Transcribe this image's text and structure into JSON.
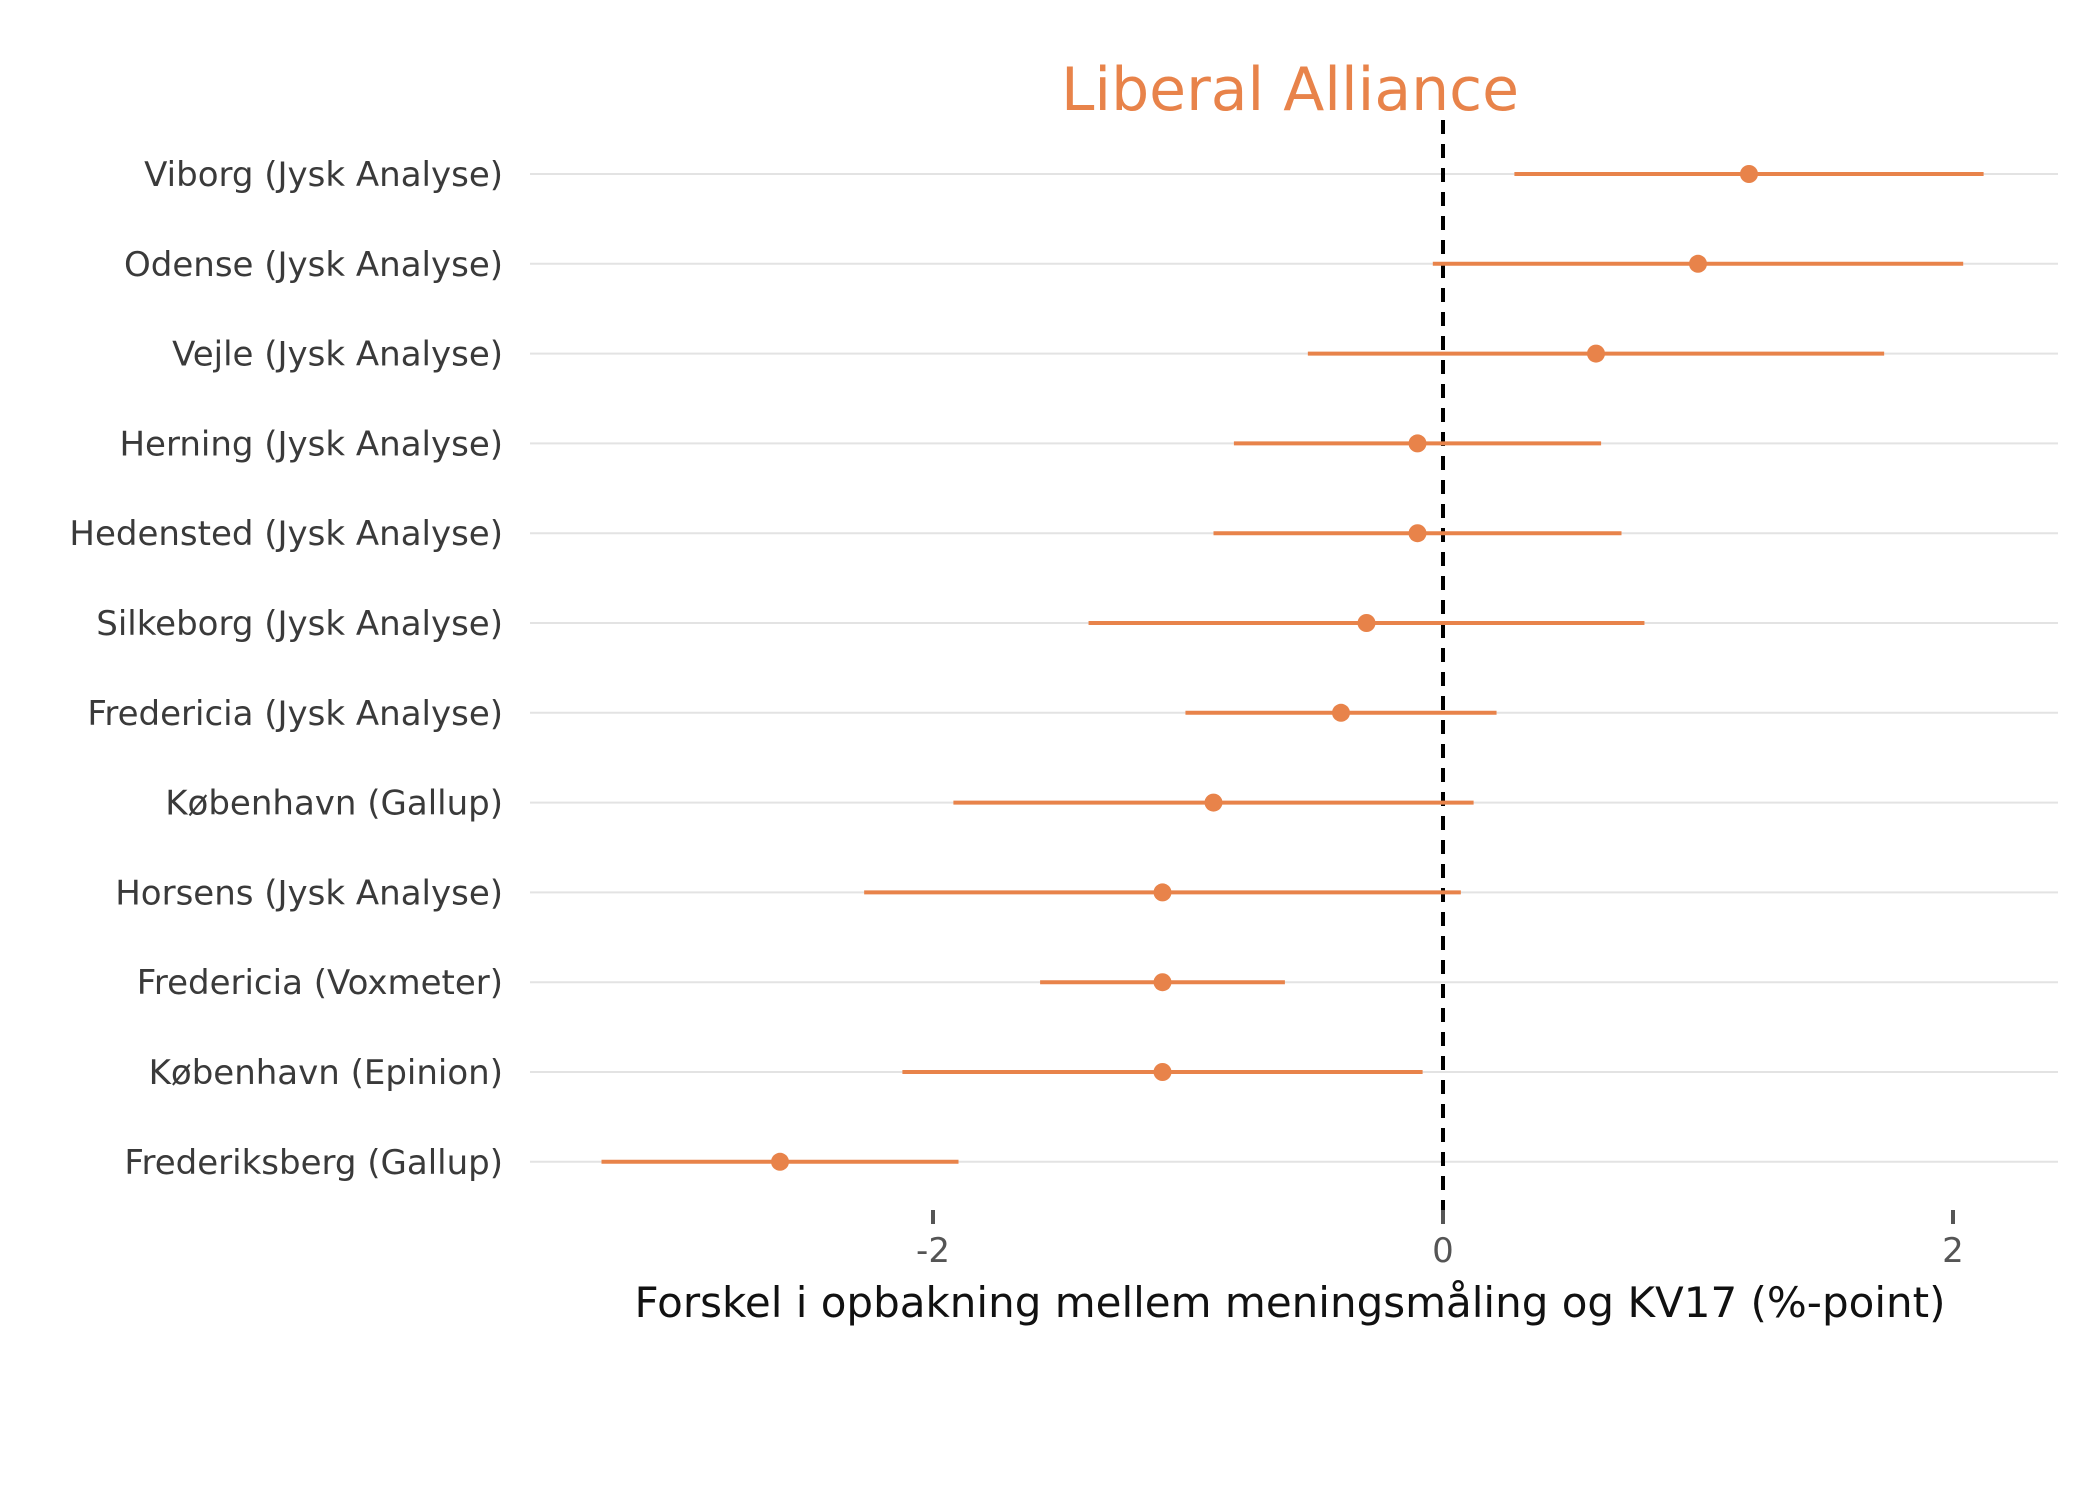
{
  "chart_data": {
    "type": "scatter",
    "subtype": "dot-and-interval",
    "title": "Liberal Alliance",
    "xlabel": "Forskel i opbakning mellem meningsmåling og KV17 (%-point)",
    "ylabel": "",
    "xlim": [
      -3.6,
      2.4
    ],
    "xticks": [
      -2,
      0,
      2
    ],
    "reference_line": {
      "x": 0,
      "style": "dashed",
      "color": "#000000"
    },
    "grid": "horizontal",
    "color": "#E8834A",
    "title_color": "#E8834A",
    "series": [
      {
        "label": "Viborg (Jysk Analyse)",
        "estimate": 1.2,
        "low": 0.28,
        "high": 2.12
      },
      {
        "label": "Odense (Jysk Analyse)",
        "estimate": 1.0,
        "low": -0.04,
        "high": 2.04
      },
      {
        "label": "Vejle (Jysk Analyse)",
        "estimate": 0.6,
        "low": -0.53,
        "high": 1.73
      },
      {
        "label": "Herning (Jysk Analyse)",
        "estimate": -0.1,
        "low": -0.82,
        "high": 0.62
      },
      {
        "label": "Hedensted (Jysk Analyse)",
        "estimate": -0.1,
        "low": -0.9,
        "high": 0.7
      },
      {
        "label": "Silkeborg (Jysk Analyse)",
        "estimate": -0.3,
        "low": -1.39,
        "high": 0.79
      },
      {
        "label": "Fredericia (Jysk Analyse)",
        "estimate": -0.4,
        "low": -1.01,
        "high": 0.21
      },
      {
        "label": "København (Gallup)",
        "estimate": -0.9,
        "low": -1.92,
        "high": 0.12
      },
      {
        "label": "Horsens (Jysk Analyse)",
        "estimate": -1.1,
        "low": -2.27,
        "high": 0.07
      },
      {
        "label": "Fredericia (Voxmeter)",
        "estimate": -1.1,
        "low": -1.58,
        "high": -0.62
      },
      {
        "label": "København (Epinion)",
        "estimate": -1.1,
        "low": -2.12,
        "high": -0.08
      },
      {
        "label": "Frederiksberg (Gallup)",
        "estimate": -2.6,
        "low": -3.3,
        "high": -1.9
      }
    ]
  }
}
